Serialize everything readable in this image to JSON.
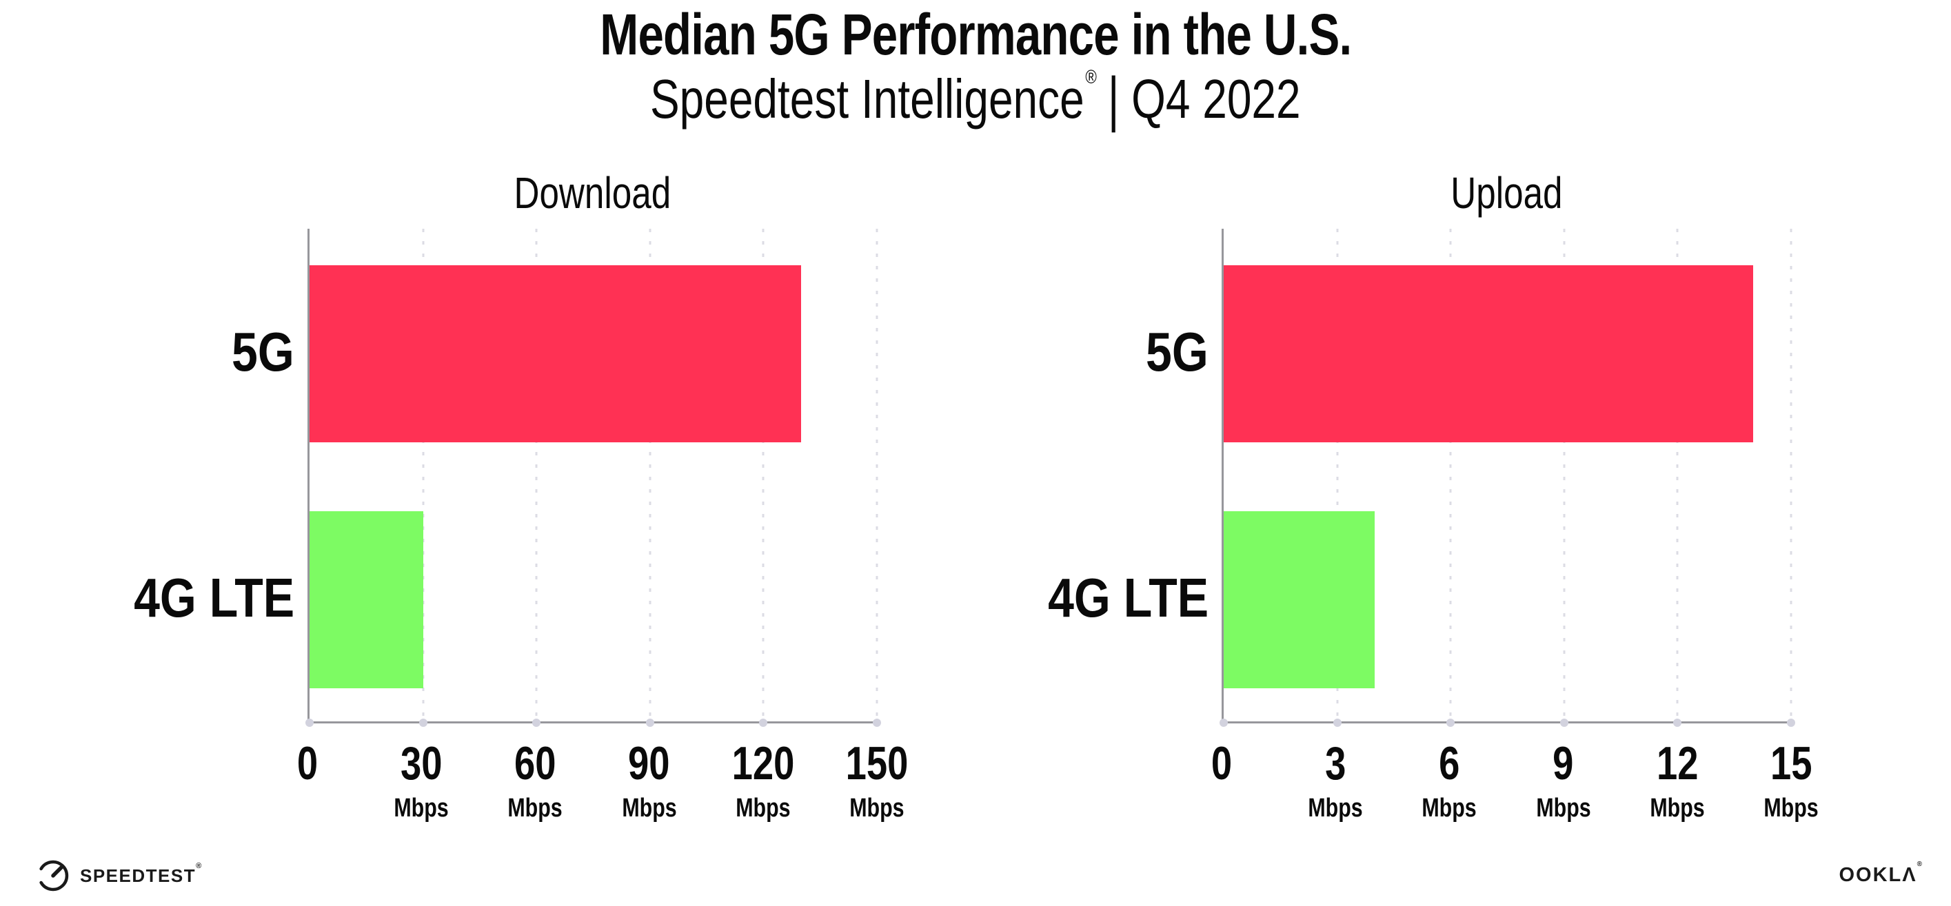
{
  "header": {
    "title": "Median 5G Performance in the U.S.",
    "subtitle_brand": "Speedtest Intelligence",
    "subtitle_reg": "®",
    "subtitle_separator": "|",
    "subtitle_period": "Q4 2022"
  },
  "colors": {
    "bar_5g": "#FF3154",
    "bar_4g_lte": "#7DFB63",
    "axis": "#97979C",
    "grid_dots": "#DCDCE4",
    "tick_dots": "#D2D2DE",
    "text": "#0A0A0A",
    "background": "#FFFFFF"
  },
  "chart_data": [
    {
      "type": "bar",
      "orientation": "horizontal",
      "title": "Download",
      "categories": [
        "5G",
        "4G LTE"
      ],
      "values": [
        130,
        30
      ],
      "unit": "Mbps",
      "xlim": [
        0,
        150
      ],
      "xticks": [
        0,
        30,
        60,
        90,
        120,
        150
      ],
      "xtick_unit": "Mbps",
      "bar_colors": [
        "#FF3154",
        "#7DFB63"
      ],
      "grid": "vertical dotted lines at each tick",
      "legend": "none"
    },
    {
      "type": "bar",
      "orientation": "horizontal",
      "title": "Upload",
      "categories": [
        "5G",
        "4G LTE"
      ],
      "values": [
        14,
        4
      ],
      "unit": "Mbps",
      "xlim": [
        0,
        15
      ],
      "xticks": [
        0,
        3,
        6,
        9,
        12,
        15
      ],
      "xtick_unit": "Mbps",
      "bar_colors": [
        "#FF3154",
        "#7DFB63"
      ],
      "grid": "vertical dotted lines at each tick",
      "legend": "none"
    }
  ],
  "footer": {
    "speedtest_label": "SPEEDTEST",
    "speedtest_mark": "®",
    "ookla_label": "OOKLA",
    "ookla_display": "OOKLΛ",
    "ookla_mark": "®"
  }
}
